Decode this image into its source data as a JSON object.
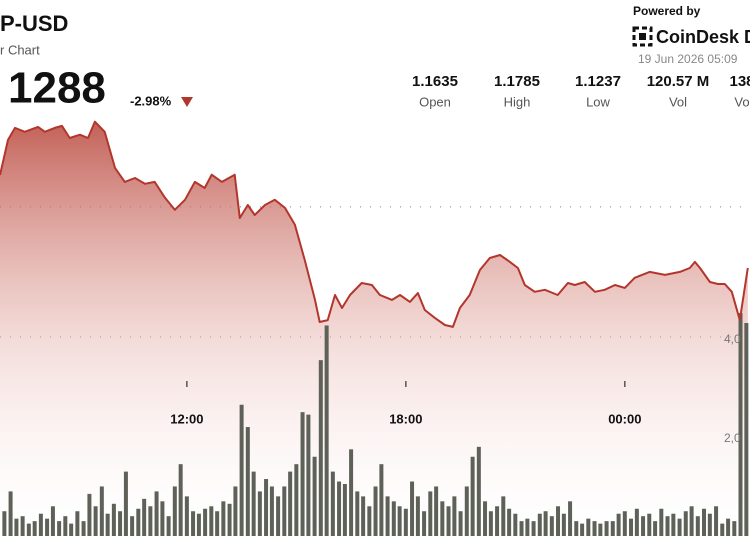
{
  "header": {
    "symbol": "P-USD",
    "subtitle": "r Chart",
    "price": "1288",
    "change": "-2.98%",
    "powered_by": "Powered by",
    "brand": "CoinDesk D",
    "timestamp": "19 Jun 2026 05:09"
  },
  "stats": [
    {
      "value": "1.1635",
      "label": "Open"
    },
    {
      "value": "1.1785",
      "label": "High"
    },
    {
      "value": "1.1237",
      "label": "Low"
    },
    {
      "value": "120.57 M",
      "label": "Vol"
    },
    {
      "value": "138",
      "label": "Vo"
    }
  ],
  "chart_data": [
    {
      "type": "area",
      "color": "#b3362c",
      "grid": true,
      "xlim": [
        6.88,
        27.43
      ],
      "xticks": [
        {
          "value": 12,
          "label": "12:00"
        },
        {
          "value": 18,
          "label": "18:00"
        },
        {
          "value": 24,
          "label": "00:00"
        }
      ],
      "ylim": [
        1.0588,
        1.1898
      ],
      "yticks": [
        1.12,
        1.16
      ],
      "x": [
        6.88,
        7.1,
        7.29,
        7.56,
        7.92,
        8.11,
        8.38,
        8.58,
        8.79,
        9.07,
        9.29,
        9.48,
        9.75,
        10.03,
        10.3,
        10.58,
        10.85,
        11.12,
        11.4,
        11.67,
        11.95,
        12.22,
        12.49,
        12.68,
        12.96,
        13.31,
        13.45,
        13.67,
        13.86,
        14.14,
        14.41,
        14.69,
        14.96,
        15.23,
        15.51,
        15.64,
        15.86,
        16.06,
        16.25,
        16.47,
        16.79,
        17.07,
        17.29,
        17.62,
        17.84,
        18.11,
        18.33,
        18.52,
        18.79,
        19.07,
        19.29,
        19.48,
        19.75,
        20.03,
        20.3,
        20.58,
        20.85,
        21.07,
        21.26,
        21.53,
        21.81,
        22.16,
        22.44,
        22.63,
        22.9,
        23.18,
        23.45,
        23.73,
        24.0,
        24.27,
        24.68,
        25.1,
        25.51,
        25.78,
        25.92,
        26.06,
        26.33,
        26.55,
        26.74,
        26.93,
        27.15,
        27.37
      ],
      "values": [
        1.1698,
        1.1806,
        1.1843,
        1.1831,
        1.1846,
        1.1831,
        1.1843,
        1.1849,
        1.1812,
        1.1822,
        1.1812,
        1.1862,
        1.1831,
        1.172,
        1.1677,
        1.1689,
        1.1671,
        1.1677,
        1.1628,
        1.1591,
        1.1622,
        1.1677,
        1.1658,
        1.1699,
        1.1677,
        1.1699,
        1.1566,
        1.1606,
        1.1575,
        1.1606,
        1.1622,
        1.1597,
        1.1545,
        1.1437,
        1.1314,
        1.1246,
        1.1252,
        1.1329,
        1.1289,
        1.1329,
        1.1366,
        1.136,
        1.1329,
        1.1314,
        1.1329,
        1.1308,
        1.1335,
        1.1283,
        1.1259,
        1.1237,
        1.1231,
        1.1289,
        1.1329,
        1.1406,
        1.1443,
        1.1452,
        1.1431,
        1.1412,
        1.136,
        1.1339,
        1.1345,
        1.1329,
        1.1366,
        1.136,
        1.1369,
        1.1339,
        1.1345,
        1.136,
        1.1351,
        1.1382,
        1.14,
        1.1391,
        1.14,
        1.1412,
        1.1431,
        1.1412,
        1.1369,
        1.1363,
        1.1363,
        1.1339,
        1.1252,
        1.1412
      ]
    },
    {
      "type": "bar",
      "color": "#5d6157",
      "axis": "y2",
      "xlim": [
        6.88,
        27.43
      ],
      "y2lim": [
        0,
        8600
      ],
      "y2ticks": [
        {
          "value": 4000,
          "label": "4,0"
        },
        {
          "value": 2000,
          "label": "2,0"
        }
      ],
      "x": [
        7,
        7.17,
        7.33,
        7.5,
        7.67,
        7.83,
        8,
        8.17,
        8.33,
        8.5,
        8.67,
        8.83,
        9,
        9.17,
        9.33,
        9.5,
        9.67,
        9.83,
        10,
        10.17,
        10.33,
        10.5,
        10.67,
        10.83,
        11,
        11.17,
        11.33,
        11.5,
        11.67,
        11.83,
        12,
        12.17,
        12.33,
        12.5,
        12.67,
        12.83,
        13,
        13.17,
        13.33,
        13.5,
        13.67,
        13.83,
        14,
        14.17,
        14.33,
        14.5,
        14.67,
        14.83,
        15,
        15.17,
        15.33,
        15.5,
        15.67,
        15.83,
        16,
        16.17,
        16.33,
        16.5,
        16.67,
        16.83,
        17,
        17.17,
        17.33,
        17.5,
        17.67,
        17.83,
        18,
        18.17,
        18.33,
        18.5,
        18.67,
        18.83,
        19,
        19.17,
        19.33,
        19.5,
        19.67,
        19.83,
        20,
        20.17,
        20.33,
        20.5,
        20.67,
        20.83,
        21,
        21.17,
        21.33,
        21.5,
        21.67,
        21.83,
        22,
        22.17,
        22.33,
        22.5,
        22.67,
        22.83,
        23,
        23.17,
        23.33,
        23.5,
        23.67,
        23.83,
        24,
        24.17,
        24.33,
        24.5,
        24.67,
        24.83,
        25,
        25.17,
        25.33,
        25.5,
        25.67,
        25.83,
        26,
        26.17,
        26.33,
        26.5,
        26.67,
        26.83,
        27,
        27.17,
        27.33
      ],
      "values": [
        500,
        900,
        350,
        400,
        250,
        300,
        450,
        350,
        600,
        300,
        400,
        250,
        500,
        300,
        850,
        600,
        1000,
        450,
        650,
        500,
        1300,
        400,
        550,
        750,
        600,
        900,
        700,
        400,
        1000,
        1450,
        800,
        500,
        450,
        550,
        600,
        500,
        700,
        650,
        1000,
        2650,
        2200,
        1300,
        900,
        1150,
        1000,
        800,
        1000,
        1300,
        1450,
        2500,
        2450,
        1600,
        3550,
        4250,
        1300,
        1100,
        1050,
        1750,
        900,
        800,
        600,
        1000,
        1450,
        800,
        700,
        600,
        550,
        1100,
        800,
        500,
        900,
        1000,
        700,
        600,
        800,
        500,
        1000,
        1600,
        1800,
        700,
        500,
        600,
        800,
        550,
        450,
        300,
        350,
        300,
        450,
        500,
        400,
        600,
        450,
        700,
        300,
        250,
        350,
        300,
        250,
        300,
        300,
        450,
        500,
        350,
        550,
        400,
        450,
        300,
        550,
        400,
        450,
        350,
        500,
        600,
        400,
        550,
        450,
        600,
        250,
        350,
        300,
        4500,
        4300
      ]
    }
  ]
}
